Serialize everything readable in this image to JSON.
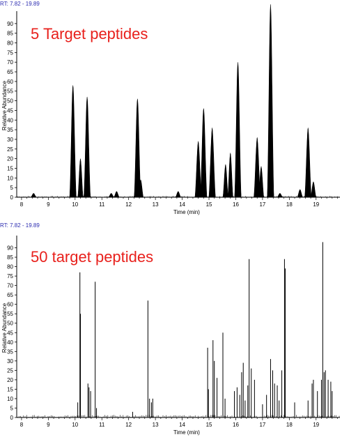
{
  "chart_data": [
    {
      "type": "line",
      "rt_label": "RT: 7.82 - 19.89",
      "annotation": "5 Target peptides",
      "xlabel": "Time (min)",
      "ylabel": "Relative Abundance",
      "xlim": [
        7.82,
        19.89
      ],
      "ylim": [
        0,
        95
      ],
      "xticks": [
        8,
        9,
        10,
        11,
        12,
        13,
        14,
        15,
        16,
        17,
        18,
        19
      ],
      "yticks": [
        0,
        5,
        10,
        15,
        20,
        25,
        30,
        35,
        40,
        45,
        50,
        55,
        60,
        65,
        70,
        75,
        80,
        85,
        90
      ],
      "grid": false,
      "color": "#000000",
      "style": "filled-peaks",
      "series": [
        {
          "peaks": [
            {
              "x": 8.45,
              "y": 2
            },
            {
              "x": 9.92,
              "y": 58
            },
            {
              "x": 10.2,
              "y": 20
            },
            {
              "x": 10.45,
              "y": 52
            },
            {
              "x": 11.35,
              "y": 2
            },
            {
              "x": 11.55,
              "y": 3
            },
            {
              "x": 12.33,
              "y": 51
            },
            {
              "x": 12.45,
              "y": 9
            },
            {
              "x": 13.85,
              "y": 3
            },
            {
              "x": 14.6,
              "y": 29
            },
            {
              "x": 14.8,
              "y": 46
            },
            {
              "x": 15.12,
              "y": 36
            },
            {
              "x": 15.62,
              "y": 17
            },
            {
              "x": 15.8,
              "y": 23
            },
            {
              "x": 16.08,
              "y": 70
            },
            {
              "x": 16.8,
              "y": 31
            },
            {
              "x": 16.95,
              "y": 16
            },
            {
              "x": 17.3,
              "y": 100
            },
            {
              "x": 17.65,
              "y": 2
            },
            {
              "x": 18.4,
              "y": 4
            },
            {
              "x": 18.7,
              "y": 36
            },
            {
              "x": 18.9,
              "y": 8
            }
          ]
        }
      ]
    },
    {
      "type": "line",
      "rt_label": "RT: 7.82 - 19.89",
      "annotation": "50 target peptides",
      "xlabel": "Time (min)",
      "ylabel": "Relative Abundance",
      "xlim": [
        7.82,
        19.89
      ],
      "ylim": [
        0,
        95
      ],
      "xticks": [
        8,
        9,
        10,
        11,
        12,
        13,
        14,
        15,
        16,
        17,
        18,
        19
      ],
      "yticks": [
        0,
        5,
        10,
        15,
        20,
        25,
        30,
        35,
        40,
        45,
        50,
        55,
        60,
        65,
        70,
        75,
        80,
        85,
        90
      ],
      "grid": false,
      "color": "#000000",
      "style": "stick-peaks",
      "series": [
        {
          "peaks": [
            {
              "x": 10.1,
              "y": 8
            },
            {
              "x": 10.18,
              "y": 77
            },
            {
              "x": 10.2,
              "y": 55
            },
            {
              "x": 10.48,
              "y": 18
            },
            {
              "x": 10.52,
              "y": 16
            },
            {
              "x": 10.58,
              "y": 14
            },
            {
              "x": 10.75,
              "y": 72
            },
            {
              "x": 10.8,
              "y": 5
            },
            {
              "x": 12.15,
              "y": 3
            },
            {
              "x": 12.72,
              "y": 62
            },
            {
              "x": 12.78,
              "y": 10
            },
            {
              "x": 12.85,
              "y": 8
            },
            {
              "x": 12.9,
              "y": 10
            },
            {
              "x": 14.95,
              "y": 37
            },
            {
              "x": 14.98,
              "y": 15
            },
            {
              "x": 15.15,
              "y": 41
            },
            {
              "x": 15.2,
              "y": 30
            },
            {
              "x": 15.3,
              "y": 21
            },
            {
              "x": 15.52,
              "y": 45
            },
            {
              "x": 15.6,
              "y": 10
            },
            {
              "x": 15.95,
              "y": 14
            },
            {
              "x": 16.05,
              "y": 16
            },
            {
              "x": 16.15,
              "y": 12
            },
            {
              "x": 16.22,
              "y": 24
            },
            {
              "x": 16.28,
              "y": 29
            },
            {
              "x": 16.35,
              "y": 9
            },
            {
              "x": 16.45,
              "y": 17
            },
            {
              "x": 16.5,
              "y": 84
            },
            {
              "x": 16.58,
              "y": 26
            },
            {
              "x": 16.7,
              "y": 20
            },
            {
              "x": 17.0,
              "y": 7
            },
            {
              "x": 17.15,
              "y": 12
            },
            {
              "x": 17.3,
              "y": 31
            },
            {
              "x": 17.38,
              "y": 25
            },
            {
              "x": 17.45,
              "y": 18
            },
            {
              "x": 17.55,
              "y": 17
            },
            {
              "x": 17.62,
              "y": 9
            },
            {
              "x": 17.72,
              "y": 25
            },
            {
              "x": 17.82,
              "y": 84
            },
            {
              "x": 17.85,
              "y": 79
            },
            {
              "x": 18.2,
              "y": 8
            },
            {
              "x": 18.7,
              "y": 9
            },
            {
              "x": 18.85,
              "y": 18
            },
            {
              "x": 18.9,
              "y": 20
            },
            {
              "x": 19.05,
              "y": 14
            },
            {
              "x": 19.2,
              "y": 20
            },
            {
              "x": 19.25,
              "y": 93
            },
            {
              "x": 19.3,
              "y": 24
            },
            {
              "x": 19.35,
              "y": 25
            },
            {
              "x": 19.45,
              "y": 20
            },
            {
              "x": 19.55,
              "y": 19
            },
            {
              "x": 19.6,
              "y": 14
            }
          ]
        }
      ]
    }
  ]
}
